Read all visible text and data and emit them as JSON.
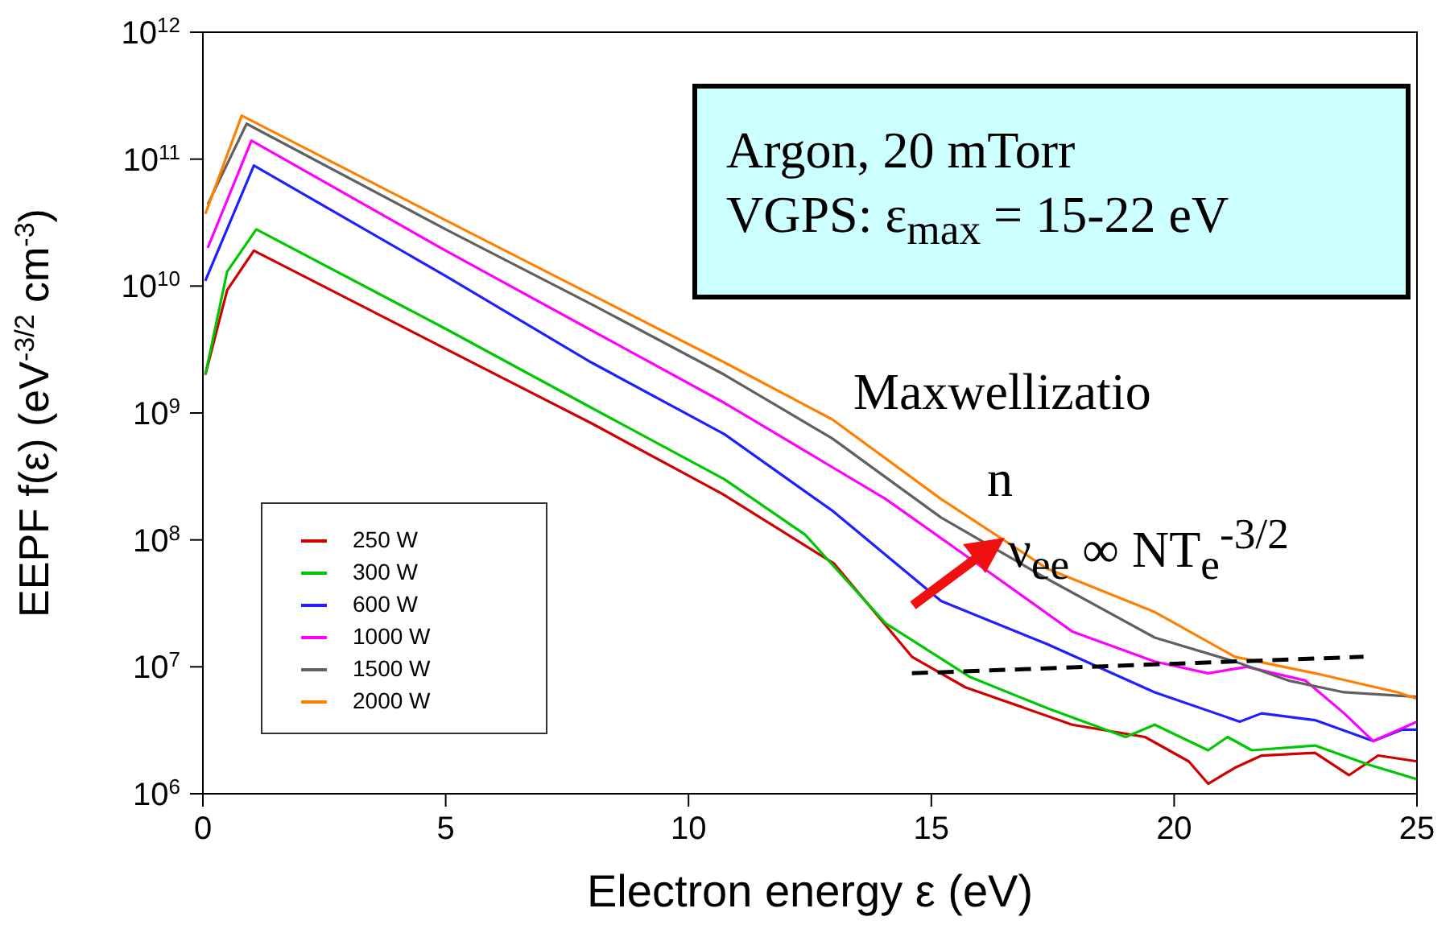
{
  "chart_data": {
    "type": "line",
    "xlabel": "Electron energy ε (eV)",
    "ylabel": "EEPF f(ε) (eV$^{-3/2}$ cm$^{-3}$)",
    "log": "y",
    "xlim": [
      0,
      25
    ],
    "xticks": [
      0,
      5,
      10,
      15,
      20,
      25
    ],
    "ylim": [
      1000000,
      1000000000000
    ],
    "yticks": [
      {
        "value": 1000000,
        "label": "10$^{6}$"
      },
      {
        "value": 10000000,
        "label": "10$^{7}$"
      },
      {
        "value": 100000000,
        "label": "10$^{8}$"
      },
      {
        "value": 1000000000,
        "label": "10$^{9}$"
      },
      {
        "value": 10000000000,
        "label": "10$^{10}$"
      },
      {
        "value": 100000000000,
        "label": "10$^{11}$"
      },
      {
        "value": 1000000000000,
        "label": "10$^{12}$"
      }
    ],
    "grid": false,
    "legend": "bottom left",
    "marker": "none",
    "line_style": "solid",
    "annotations": [
      "Argon, 20  mTorr",
      "VGPS: ε$_{max}$ = 15-22 eV",
      "Maxwellizatio",
      "n",
      "ν$_{ee}$ ∞ NT$_{e}$$^{-3/2}$"
    ],
    "series": [
      {
        "name": "250 W",
        "color": "#d00000",
        "x": [
          0.05,
          0.5,
          1.05,
          5,
          8,
          10.7,
          13,
          14.6,
          15.7,
          17.9,
          19.4,
          20.3,
          20.7,
          21.25,
          21.8,
          22.9,
          23.6,
          24.2,
          25
        ],
        "values": [
          2000000000.0,
          9300000000.0,
          19000000000.0,
          3200000000.0,
          830000000.0,
          230000000.0,
          65000000.0,
          12000000.0,
          6900000.0,
          3500000.0,
          2800000.0,
          1800000.0,
          1200000.0,
          1600000.0,
          2000000.0,
          2100000.0,
          1400000.0,
          2000000.0,
          1800000.0
        ]
      },
      {
        "name": "300 W",
        "color": "#00c800",
        "x": [
          0.05,
          0.5,
          1.1,
          5,
          8,
          10.74,
          12.4,
          14.06,
          15.8,
          17.4,
          19.0,
          19.6,
          20.7,
          21.1,
          21.6,
          22.9,
          24.0,
          25
        ],
        "values": [
          2000000000.0,
          13000000000.0,
          28000000000.0,
          4600000000.0,
          1100000000.0,
          300000000.0,
          110000000.0,
          22000000.0,
          8300000.0,
          4700000.0,
          2800000.0,
          3500000.0,
          2200000.0,
          2800000.0,
          2200000.0,
          2400000.0,
          1700000.0,
          1300000.0
        ]
      },
      {
        "name": "600 W",
        "color": "#2020ff",
        "x": [
          0.05,
          1.05,
          5,
          8,
          10.74,
          12.96,
          15.2,
          17.4,
          19.6,
          21.35,
          21.8,
          22.9,
          24.1,
          24.7,
          25
        ],
        "values": [
          11000000000.0,
          89000000000.0,
          12000000000.0,
          2500000000.0,
          680000000.0,
          170000000.0,
          33000000.0,
          15000000.0,
          6300000.0,
          3700000.0,
          4300000.0,
          3800000.0,
          2600000.0,
          3200000.0,
          3200000.0
        ]
      },
      {
        "name": "1000 W",
        "color": "#ff00ff",
        "x": [
          0.1,
          1.0,
          5,
          10.74,
          14.06,
          16.3,
          17.9,
          19.6,
          20.7,
          21.5,
          22.7,
          23.5,
          24.1,
          25
        ],
        "values": [
          20000000000.0,
          140000000000.0,
          19000000000.0,
          1200000000.0,
          210000000.0,
          52000000.0,
          19000000.0,
          11000000.0,
          8900000.0,
          10000000.0,
          7800000.0,
          4300000.0,
          2600000.0,
          3700000.0
        ]
      },
      {
        "name": "1500 W",
        "color": "#606060",
        "x": [
          0.1,
          0.9,
          5,
          8,
          10.74,
          12.96,
          15.2,
          17.4,
          19.6,
          21.25,
          22.35,
          23.5,
          25
        ],
        "values": [
          44000000000.0,
          190000000000.0,
          28000000000.0,
          7200000000.0,
          2000000000.0,
          630000000.0,
          150000000.0,
          49000000.0,
          17000000.0,
          11000000.0,
          7800000.0,
          6300000.0,
          5800000.0
        ]
      },
      {
        "name": "2000 W",
        "color": "#ff8000",
        "x": [
          0.05,
          0.8,
          5,
          10.74,
          12.96,
          15.2,
          17.4,
          19.6,
          21.25,
          22.9,
          24.6,
          25
        ],
        "values": [
          37000000000.0,
          220000000000.0,
          33000000000.0,
          2500000000.0,
          890000000.0,
          210000000.0,
          59000000.0,
          27000000.0,
          12000000.0,
          8900000.0,
          6300000.0,
          5600000.0
        ]
      },
      {
        "color": "#000000",
        "line_style": "dashed",
        "x": [
          14.6,
          23.9
        ],
        "values": [
          8900000.0,
          12000000.0
        ]
      }
    ]
  }
}
